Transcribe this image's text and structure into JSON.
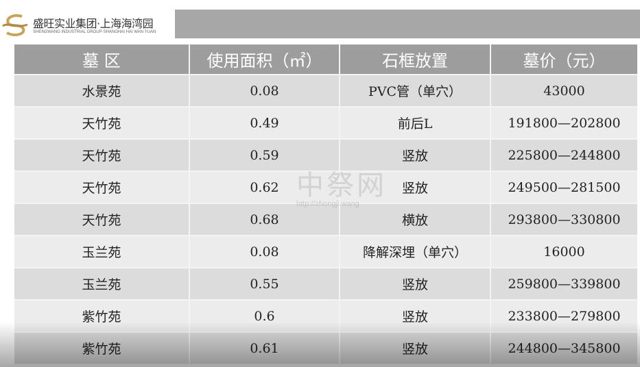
{
  "header": {
    "company_cn": "盛旺实业集团·上海海湾园",
    "company_en": "SHENGWANG INDUSTRIAL GROUP·SHANGHAI HAI WAN YUAN",
    "accent": "#c8a25a"
  },
  "table": {
    "columns": [
      "墓 区",
      "使用面积（㎡）",
      "石框放置",
      "墓价（元）"
    ],
    "rows": [
      [
        "水景苑",
        "0.08",
        "PVC管（单穴）",
        "43000"
      ],
      [
        "天竹苑",
        "0.49",
        "前后L",
        "191800—202800"
      ],
      [
        "天竹苑",
        "0.59",
        "竖放",
        "225800—244800"
      ],
      [
        "天竹苑",
        "0.62",
        "竖放",
        "249500—281500"
      ],
      [
        "天竹苑",
        "0.68",
        "横放",
        "293800—330800"
      ],
      [
        "玉兰苑",
        "0.08",
        "降解深埋（单穴）",
        "16000"
      ],
      [
        "玉兰苑",
        "0.55",
        "竖放",
        "259800—339800"
      ],
      [
        "紫竹苑",
        "0.6",
        "竖放",
        "233800—279800"
      ],
      [
        "紫竹苑",
        "0.61",
        "竖放",
        "244800—345800"
      ]
    ]
  },
  "watermark": {
    "text": "中祭网",
    "url": "http://zhongji.wang"
  }
}
